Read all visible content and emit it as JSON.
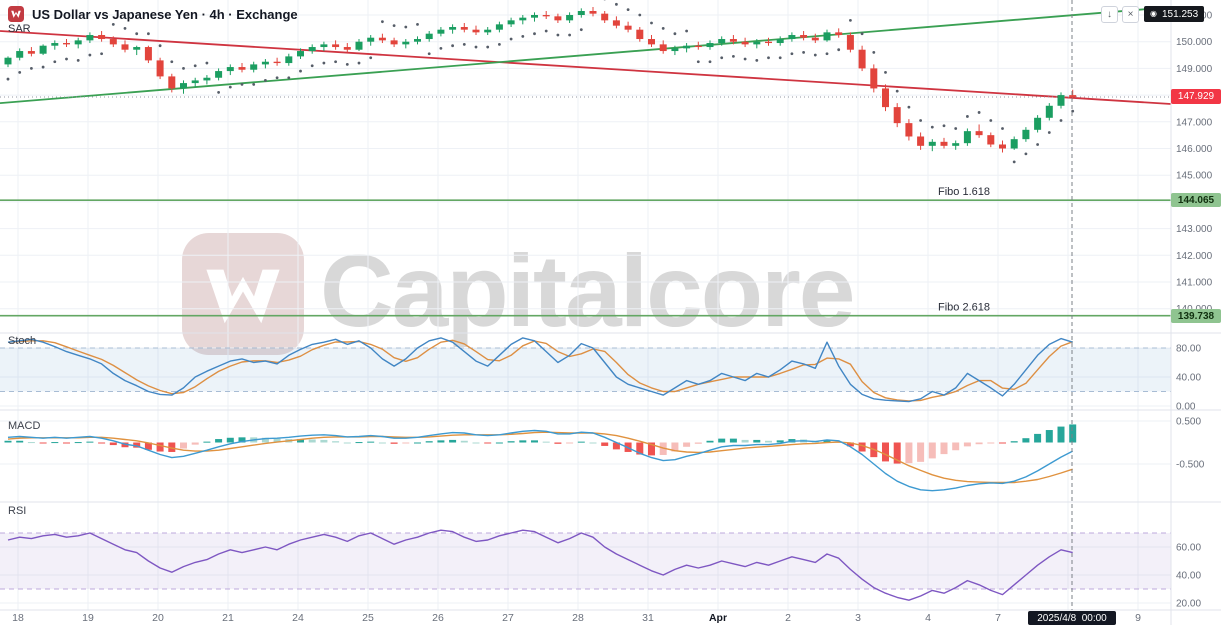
{
  "header": {
    "title": "US Dollar vs Japanese Yen · 4h · Exchange"
  },
  "panes": {
    "sar_label": "SAR",
    "stoch_label": "Stoch",
    "macd_label": "MACD",
    "rsi_label": "RSI"
  },
  "toolbar": {
    "download_icon": "↓",
    "close_icon": "×"
  },
  "watermark": {
    "text": "Capitalcore"
  },
  "badges": {
    "top_price": {
      "value": "151.253",
      "bg": "#15181d"
    },
    "last_price": {
      "value": "147.929",
      "bg": "#f23645"
    },
    "fibo1": {
      "value": "144.065",
      "bg": "#8fc490"
    },
    "fibo2": {
      "value": "139.738",
      "bg": "#8fc490"
    },
    "crosshair_time": {
      "value": "2025/4/8  00:00",
      "bg": "#131722"
    }
  },
  "chart_data": {
    "type": "candlestick",
    "symbol": "USD/JPY",
    "timeframe": "4h",
    "source": "Exchange",
    "last_price": 147.929,
    "price_axis": {
      "ticks": [
        151,
        150,
        149,
        148,
        147,
        146,
        145,
        144,
        143,
        142,
        141,
        140
      ]
    },
    "time_axis": {
      "labels": [
        "18",
        "19",
        "20",
        "21",
        "24",
        "25",
        "26",
        "27",
        "28",
        "31",
        "Apr",
        "2",
        "3",
        "4",
        "7"
      ],
      "extra": "9",
      "strong": "Apr",
      "crosshair_label": "2025/4/8  00:00"
    },
    "fibo_levels": [
      {
        "label": "Fibo 1.618",
        "price": 144.065
      },
      {
        "label": "Fibo 2.618",
        "price": 139.738
      }
    ],
    "trendlines": [
      {
        "name": "descending-resistance",
        "color": "#cf3440",
        "p0": 150.4,
        "p1221": 147.55
      },
      {
        "name": "ascending-support",
        "color": "#3aa053",
        "p0": 147.7,
        "p1221": 151.45
      }
    ],
    "candles": [
      [
        149.15,
        149.45,
        149.05,
        149.4
      ],
      [
        149.4,
        149.75,
        149.3,
        149.65
      ],
      [
        149.65,
        149.8,
        149.45,
        149.55
      ],
      [
        149.55,
        149.9,
        149.5,
        149.85
      ],
      [
        149.85,
        150.05,
        149.7,
        149.95
      ],
      [
        149.95,
        150.1,
        149.8,
        149.9
      ],
      [
        149.9,
        150.15,
        149.75,
        150.05
      ],
      [
        150.05,
        150.35,
        149.95,
        150.25
      ],
      [
        150.25,
        150.4,
        150.0,
        150.1
      ],
      [
        150.1,
        150.2,
        149.8,
        149.9
      ],
      [
        149.9,
        150.05,
        149.6,
        149.7
      ],
      [
        149.7,
        149.85,
        149.5,
        149.8
      ],
      [
        149.8,
        149.85,
        149.2,
        149.3
      ],
      [
        149.3,
        149.4,
        148.6,
        148.7
      ],
      [
        148.7,
        148.8,
        148.1,
        148.25
      ],
      [
        148.25,
        148.55,
        148.05,
        148.45
      ],
      [
        148.45,
        148.65,
        148.3,
        148.55
      ],
      [
        148.55,
        148.75,
        148.4,
        148.65
      ],
      [
        148.65,
        149.0,
        148.55,
        148.9
      ],
      [
        148.9,
        149.15,
        148.75,
        149.05
      ],
      [
        149.05,
        149.2,
        148.85,
        148.95
      ],
      [
        148.95,
        149.25,
        148.85,
        149.15
      ],
      [
        149.15,
        149.35,
        149.0,
        149.25
      ],
      [
        149.25,
        149.4,
        149.1,
        149.2
      ],
      [
        149.2,
        149.55,
        149.1,
        149.45
      ],
      [
        149.45,
        149.75,
        149.35,
        149.65
      ],
      [
        149.65,
        149.9,
        149.55,
        149.8
      ],
      [
        149.8,
        150.0,
        149.65,
        149.9
      ],
      [
        149.9,
        150.05,
        149.7,
        149.8
      ],
      [
        149.8,
        149.95,
        149.6,
        149.7
      ],
      [
        149.7,
        150.1,
        149.65,
        150.0
      ],
      [
        150.0,
        150.25,
        149.85,
        150.15
      ],
      [
        150.15,
        150.3,
        149.95,
        150.05
      ],
      [
        150.05,
        150.15,
        149.8,
        149.9
      ],
      [
        149.9,
        150.1,
        149.75,
        150.0
      ],
      [
        150.0,
        150.2,
        149.9,
        150.1
      ],
      [
        150.1,
        150.4,
        150.0,
        150.3
      ],
      [
        150.3,
        150.55,
        150.2,
        150.45
      ],
      [
        150.45,
        150.65,
        150.3,
        150.55
      ],
      [
        150.55,
        150.7,
        150.35,
        150.45
      ],
      [
        150.45,
        150.6,
        150.25,
        150.35
      ],
      [
        150.35,
        150.55,
        150.25,
        150.45
      ],
      [
        150.45,
        150.75,
        150.35,
        150.65
      ],
      [
        150.65,
        150.9,
        150.55,
        150.8
      ],
      [
        150.8,
        151.0,
        150.65,
        150.9
      ],
      [
        150.9,
        151.1,
        150.75,
        151.0
      ],
      [
        151.0,
        151.15,
        150.85,
        150.95
      ],
      [
        150.95,
        151.05,
        150.7,
        150.8
      ],
      [
        150.8,
        151.1,
        150.7,
        151.0
      ],
      [
        151.0,
        151.25,
        150.9,
        151.15
      ],
      [
        151.15,
        151.3,
        150.95,
        151.05
      ],
      [
        151.05,
        151.15,
        150.7,
        150.8
      ],
      [
        150.8,
        150.95,
        150.5,
        150.6
      ],
      [
        150.6,
        150.75,
        150.35,
        150.45
      ],
      [
        150.45,
        150.55,
        150.0,
        150.1
      ],
      [
        150.1,
        150.25,
        149.8,
        149.9
      ],
      [
        149.9,
        150.05,
        149.55,
        149.65
      ],
      [
        149.65,
        149.85,
        149.5,
        149.75
      ],
      [
        149.75,
        149.95,
        149.6,
        149.85
      ],
      [
        149.85,
        150.0,
        149.7,
        149.8
      ],
      [
        149.8,
        150.05,
        149.7,
        149.95
      ],
      [
        149.95,
        150.2,
        149.85,
        150.1
      ],
      [
        150.1,
        150.25,
        149.9,
        150.0
      ],
      [
        150.0,
        150.15,
        149.8,
        149.9
      ],
      [
        149.9,
        150.1,
        149.75,
        150.0
      ],
      [
        150.0,
        150.15,
        149.85,
        149.95
      ],
      [
        149.95,
        150.2,
        149.85,
        150.1
      ],
      [
        150.1,
        150.35,
        150.0,
        150.25
      ],
      [
        150.25,
        150.4,
        150.05,
        150.15
      ],
      [
        150.15,
        150.3,
        149.95,
        150.05
      ],
      [
        150.05,
        150.45,
        150.0,
        150.35
      ],
      [
        150.35,
        150.5,
        150.15,
        150.25
      ],
      [
        150.25,
        150.35,
        149.6,
        149.7
      ],
      [
        149.7,
        149.85,
        148.9,
        149.0
      ],
      [
        149.0,
        149.15,
        148.1,
        148.25
      ],
      [
        148.25,
        148.4,
        147.4,
        147.55
      ],
      [
        147.55,
        147.7,
        146.8,
        146.95
      ],
      [
        146.95,
        147.1,
        146.3,
        146.45
      ],
      [
        146.45,
        146.6,
        145.95,
        146.1
      ],
      [
        146.1,
        146.35,
        145.9,
        146.25
      ],
      [
        146.25,
        146.4,
        146.0,
        146.1
      ],
      [
        146.1,
        146.3,
        145.95,
        146.2
      ],
      [
        146.2,
        146.75,
        146.1,
        146.65
      ],
      [
        146.65,
        146.9,
        146.4,
        146.5
      ],
      [
        146.5,
        146.6,
        146.05,
        146.15
      ],
      [
        146.15,
        146.3,
        145.85,
        146.0
      ],
      [
        146.0,
        146.45,
        145.95,
        146.35
      ],
      [
        146.35,
        146.8,
        146.25,
        146.7
      ],
      [
        146.7,
        147.25,
        146.6,
        147.15
      ],
      [
        147.15,
        147.7,
        147.05,
        147.6
      ],
      [
        147.6,
        148.1,
        147.5,
        148.0
      ],
      [
        148.0,
        148.2,
        147.85,
        147.93
      ]
    ],
    "sar_trend": [
      1,
      1,
      1,
      1,
      1,
      1,
      1,
      1,
      1,
      -1,
      -1,
      -1,
      -1,
      -1,
      -1,
      -1,
      -1,
      -1,
      1,
      1,
      1,
      1,
      1,
      1,
      1,
      1,
      1,
      1,
      1,
      1,
      1,
      1,
      -1,
      -1,
      -1,
      -1,
      1,
      1,
      1,
      1,
      1,
      1,
      1,
      1,
      1,
      1,
      1,
      1,
      1,
      1,
      -1,
      -1,
      -1,
      -1,
      -1,
      -1,
      -1,
      -1,
      -1,
      1,
      1,
      1,
      1,
      1,
      1,
      1,
      1,
      1,
      1,
      1,
      1,
      1,
      -1,
      -1,
      -1,
      -1,
      -1,
      -1,
      -1,
      -1,
      -1,
      -1,
      -1,
      -1,
      -1,
      -1,
      1,
      1,
      1,
      1,
      1,
      1
    ],
    "indicators": {
      "stoch": {
        "ticks": [
          80,
          40,
          0
        ],
        "bands": [
          80,
          20
        ],
        "k": [
          88,
          90,
          92,
          88,
          82,
          75,
          70,
          65,
          58,
          45,
          35,
          28,
          20,
          16,
          15,
          25,
          40,
          48,
          55,
          62,
          65,
          60,
          62,
          58,
          70,
          78,
          85,
          88,
          92,
          85,
          90,
          80,
          65,
          55,
          65,
          80,
          90,
          94,
          88,
          75,
          62,
          55,
          70,
          85,
          94,
          90,
          75,
          60,
          70,
          86,
          80,
          60,
          40,
          30,
          25,
          20,
          15,
          25,
          35,
          30,
          35,
          45,
          40,
          35,
          45,
          40,
          50,
          62,
          58,
          52,
          88,
          55,
          30,
          16,
          10,
          8,
          7,
          6,
          10,
          20,
          15,
          25,
          45,
          35,
          25,
          14,
          30,
          50,
          70,
          85,
          93,
          88
        ]
      },
      "macd": {
        "ticks": [
          0.5,
          -0.5
        ],
        "macd": [
          0.12,
          0.14,
          0.12,
          0.1,
          0.12,
          0.1,
          0.12,
          0.14,
          0.1,
          0.04,
          -0.04,
          -0.08,
          -0.18,
          -0.28,
          -0.35,
          -0.32,
          -0.25,
          -0.18,
          -0.1,
          -0.03,
          0.02,
          0.06,
          0.09,
          0.1,
          0.12,
          0.15,
          0.17,
          0.18,
          0.16,
          0.13,
          0.14,
          0.16,
          0.14,
          0.1,
          0.1,
          0.12,
          0.16,
          0.2,
          0.23,
          0.22,
          0.18,
          0.16,
          0.18,
          0.22,
          0.26,
          0.28,
          0.26,
          0.2,
          0.2,
          0.24,
          0.22,
          0.12,
          0.0,
          -0.12,
          -0.25,
          -0.35,
          -0.42,
          -0.4,
          -0.32,
          -0.26,
          -0.18,
          -0.1,
          -0.07,
          -0.07,
          -0.05,
          -0.05,
          -0.02,
          0.03,
          0.04,
          0.02,
          0.06,
          0.04,
          -0.1,
          -0.28,
          -0.5,
          -0.72,
          -0.9,
          -1.02,
          -1.1,
          -1.12,
          -1.1,
          -1.06,
          -1.0,
          -0.96,
          -0.94,
          -0.95,
          -0.9,
          -0.8,
          -0.66,
          -0.5,
          -0.34,
          -0.2
        ],
        "signal": [
          0.08,
          0.1,
          0.11,
          0.11,
          0.11,
          0.11,
          0.11,
          0.12,
          0.12,
          0.1,
          0.07,
          0.04,
          -0.01,
          -0.07,
          -0.13,
          -0.18,
          -0.2,
          -0.2,
          -0.18,
          -0.14,
          -0.1,
          -0.06,
          -0.02,
          0.01,
          0.04,
          0.07,
          0.1,
          0.12,
          0.13,
          0.13,
          0.13,
          0.14,
          0.14,
          0.13,
          0.12,
          0.12,
          0.13,
          0.15,
          0.17,
          0.18,
          0.18,
          0.18,
          0.18,
          0.19,
          0.21,
          0.23,
          0.24,
          0.23,
          0.22,
          0.22,
          0.22,
          0.2,
          0.16,
          0.1,
          0.03,
          -0.05,
          -0.13,
          -0.19,
          -0.22,
          -0.23,
          -0.22,
          -0.19,
          -0.16,
          -0.13,
          -0.11,
          -0.09,
          -0.07,
          -0.05,
          -0.03,
          -0.02,
          0.0,
          0.01,
          -0.01,
          -0.07,
          -0.16,
          -0.28,
          -0.41,
          -0.54,
          -0.65,
          -0.75,
          -0.83,
          -0.88,
          -0.91,
          -0.92,
          -0.93,
          -0.93,
          -0.93,
          -0.9,
          -0.86,
          -0.79,
          -0.71,
          -0.62
        ]
      },
      "rsi": {
        "ticks": [
          60,
          40,
          20
        ],
        "bands": [
          70,
          30
        ],
        "values": [
          65,
          67,
          66,
          68,
          69,
          67,
          68,
          70,
          66,
          62,
          58,
          56,
          50,
          45,
          42,
          46,
          49,
          51,
          55,
          58,
          56,
          58,
          60,
          58,
          62,
          65,
          67,
          69,
          67,
          64,
          68,
          70,
          66,
          62,
          65,
          67,
          70,
          72,
          71,
          67,
          64,
          65,
          68,
          70,
          72,
          71,
          67,
          63,
          66,
          70,
          67,
          60,
          55,
          51,
          47,
          43,
          40,
          44,
          47,
          45,
          47,
          50,
          48,
          46,
          49,
          47,
          50,
          53,
          51,
          49,
          55,
          52,
          44,
          37,
          31,
          27,
          24,
          22,
          25,
          29,
          27,
          31,
          36,
          33,
          29,
          26,
          33,
          40,
          47,
          53,
          58,
          56
        ]
      }
    },
    "colors": {
      "up": "#1b9e61",
      "down": "#e2443c",
      "sar": "#565d68",
      "grid": "#eef1f6",
      "separator": "#e0e3eb",
      "axis_text": "#696f7b",
      "fibo": "#63a763",
      "stoch_k": "#4186c4",
      "stoch_d": "#dd8f43",
      "stoch_band": "rgba(65,134,196,0.10)",
      "stoch_band_edge": "#a8bcd4",
      "macd_line": "#3d9ad1",
      "macd_signal": "#e0923f",
      "hist_up": "#26a69a",
      "hist_up_fade": "#abd9d2",
      "hist_down": "#ef5350",
      "hist_down_fade": "#f6bdb9",
      "rsi_line": "#7e57c2",
      "rsi_band": "rgba(126,87,194,0.09)",
      "rsi_band_edge": "#bda9dc",
      "crosshair": "#7b8087",
      "price_line": "#9096a1"
    }
  }
}
